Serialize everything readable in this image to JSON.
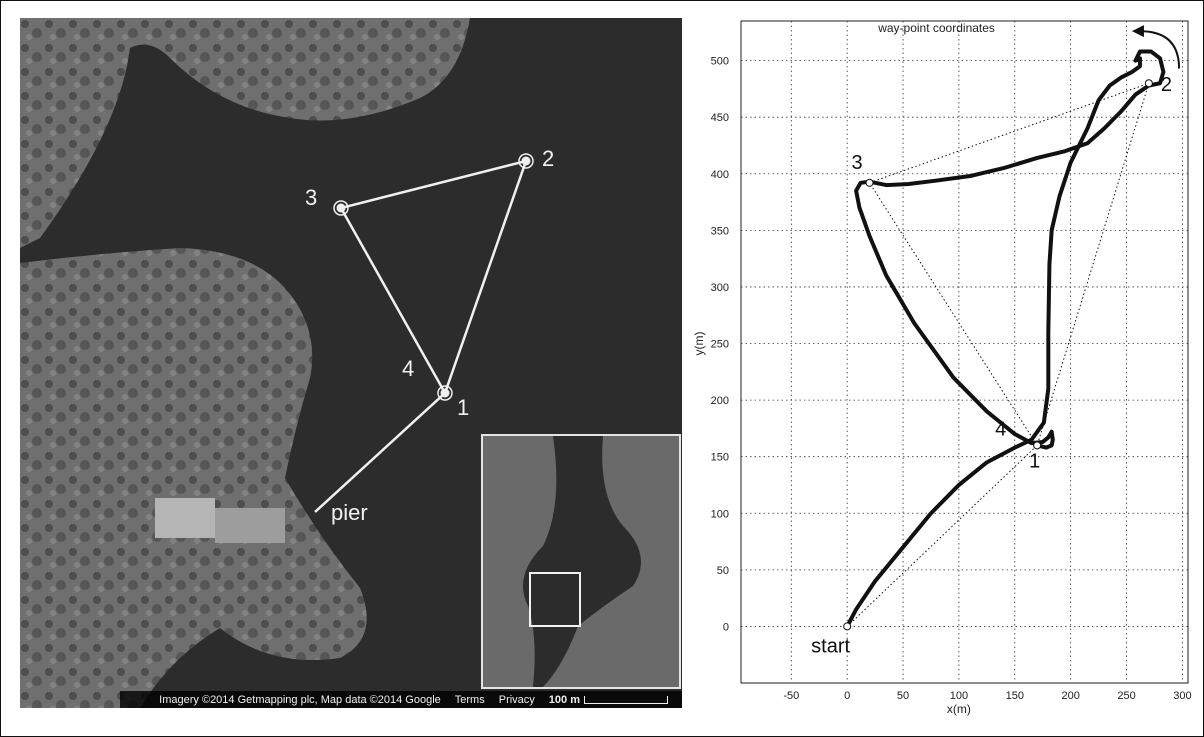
{
  "map": {
    "waypoint_labels": [
      "1",
      "2",
      "3",
      "4"
    ],
    "pier_label": "pier",
    "attribution": "Imagery ©2014 Getmapping plc, Map data ©2014 Google",
    "terms": "Terms",
    "privacy": "Privacy",
    "scale": "100 m"
  },
  "chart_data": {
    "type": "line",
    "title": "way-point coordinates",
    "xlabel": "x(m)",
    "ylabel": "y(m)",
    "xlim": [
      -95,
      305
    ],
    "ylim": [
      -50,
      535
    ],
    "xticks": [
      -50,
      0,
      50,
      100,
      150,
      200,
      250,
      300
    ],
    "yticks": [
      0,
      50,
      100,
      150,
      200,
      250,
      300,
      350,
      400,
      450,
      500
    ],
    "grid": "dotted",
    "waypoints": [
      {
        "label": "start",
        "x": 0,
        "y": 0
      },
      {
        "label": "1",
        "x": 170,
        "y": 160
      },
      {
        "label": "2",
        "x": 270,
        "y": 480
      },
      {
        "label": "3",
        "x": 20,
        "y": 392
      },
      {
        "label": "4",
        "x": 170,
        "y": 160
      }
    ],
    "planned_route": {
      "x": [
        0,
        170,
        270,
        20,
        170
      ],
      "y": [
        0,
        160,
        480,
        392,
        160
      ]
    },
    "trajectory": {
      "x": [
        0,
        8,
        25,
        50,
        75,
        100,
        125,
        150,
        165,
        176,
        180,
        180,
        181,
        183,
        190,
        200,
        215,
        225,
        235,
        245,
        255,
        262,
        262,
        258,
        262,
        272,
        280,
        283,
        280,
        270,
        258,
        245,
        230,
        215,
        195,
        170,
        140,
        110,
        80,
        55,
        35,
        20,
        12,
        8,
        11,
        20,
        35,
        60,
        95,
        125,
        150,
        165,
        175,
        180,
        183,
        184,
        183,
        178,
        170
      ],
      "y": [
        0,
        15,
        40,
        70,
        100,
        125,
        145,
        158,
        165,
        180,
        210,
        260,
        320,
        350,
        380,
        410,
        440,
        465,
        478,
        485,
        490,
        495,
        502,
        500,
        508,
        508,
        502,
        490,
        480,
        478,
        470,
        455,
        440,
        427,
        420,
        414,
        405,
        398,
        394,
        391,
        390,
        393,
        392,
        385,
        370,
        345,
        310,
        268,
        220,
        190,
        170,
        162,
        163,
        167,
        172,
        165,
        160,
        158,
        160
      ]
    },
    "annotations": [
      {
        "text": "rotation arrow at waypoint 2",
        "kind": "arrow"
      }
    ]
  }
}
